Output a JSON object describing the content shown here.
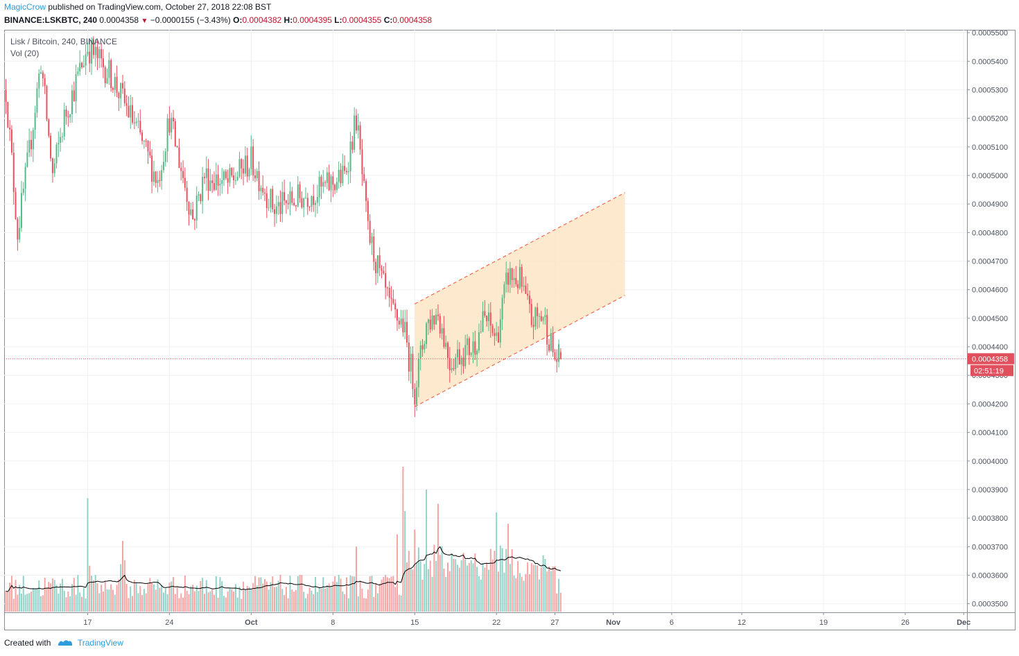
{
  "header": {
    "author": "MagicCrow",
    "published": "published on TradingView.com, October 27, 2018 22:08 BST",
    "symbol": "BINANCE:LSKBTC, 240",
    "last": "0.0004358",
    "change": "−0.0000155 (−3.43%)",
    "o_label": "O:",
    "o_value": "0.0004382",
    "h_label": "H:",
    "h_value": "0.0004395",
    "l_label": "L:",
    "l_value": "0.0004355",
    "c_label": "C:",
    "c_value": "0.0004358"
  },
  "legend": {
    "title": "Lisk / Bitcoin, 240, BINANCE",
    "volume": "Vol (20)"
  },
  "footer": {
    "created": "Created with",
    "brand": "TradingView"
  },
  "chart_data": {
    "type": "candlestick",
    "price_axis": {
      "ticks": [
        "0.0005500",
        "0.0005400",
        "0.0005300",
        "0.0005200",
        "0.0005100",
        "0.0005000",
        "0.0004900",
        "0.0004800",
        "0.0004700",
        "0.0004600",
        "0.0004500",
        "0.0004400",
        "0.0004300",
        "0.0004200",
        "0.0004100",
        "0.0004000",
        "0.0003900",
        "0.0003800",
        "0.0003700",
        "0.0003600",
        "0.0003500"
      ],
      "range": [
        0.000347,
        0.000551
      ]
    },
    "time_axis": {
      "labels": [
        "17",
        "24",
        "Oct",
        "8",
        "15",
        "22",
        "27",
        "Nov",
        "6",
        "12",
        "19",
        "26",
        "Dec"
      ],
      "label_dates": [
        "2018-09-17",
        "2018-09-24",
        "2018-10-01",
        "2018-10-08",
        "2018-10-15",
        "2018-10-22",
        "2018-10-27",
        "2018-11-01",
        "2018-11-06",
        "2018-11-12",
        "2018-11-19",
        "2018-11-26",
        "2018-12-01"
      ]
    },
    "last_price": {
      "value": 0.0004358,
      "label": "0.0004358",
      "countdown": "02:51:19",
      "color": "#e0505d"
    },
    "channel": {
      "start_date": "2018-10-15",
      "end_date": "2018-11-02",
      "upper": [
        0.000455,
        0.000494
      ],
      "lower": [
        0.000419,
        0.000458
      ],
      "fill": "#fde5c5",
      "line_color": "#f26b4f"
    },
    "colors": {
      "up": "#53b987",
      "down": "#eb4d5c",
      "vol_up": "#8fd2c8",
      "vol_down": "#f5a3a3",
      "ma": "#000000"
    },
    "anchors": {
      "dates": [
        "2018-09-10",
        "2018-09-11",
        "2018-09-12",
        "2018-09-13",
        "2018-09-14",
        "2018-09-15",
        "2018-09-17",
        "2018-09-19",
        "2018-09-21",
        "2018-09-23",
        "2018-09-24",
        "2018-09-26",
        "2018-09-27",
        "2018-09-29",
        "2018-10-01",
        "2018-10-03",
        "2018-10-04",
        "2018-10-05",
        "2018-10-07",
        "2018-10-09",
        "2018-10-10",
        "2018-10-11",
        "2018-10-12",
        "2018-10-13",
        "2018-10-14",
        "2018-10-15",
        "2018-10-16",
        "2018-10-17",
        "2018-10-18",
        "2018-10-19",
        "2018-10-20",
        "2018-10-21",
        "2018-10-22",
        "2018-10-23",
        "2018-10-24",
        "2018-10-25",
        "2018-10-26",
        "2018-10-27"
      ],
      "closes": [
        0.00053,
        0.00048,
        0.000508,
        0.00054,
        0.0005,
        0.00052,
        0.000545,
        0.000535,
        0.000518,
        0.000498,
        0.00052,
        0.000485,
        0.0005,
        0.000497,
        0.000505,
        0.000488,
        0.00049,
        0.000492,
        0.000495,
        0.0005,
        0.00052,
        0.00048,
        0.000465,
        0.000452,
        0.000448,
        0.000425,
        0.000448,
        0.000452,
        0.000435,
        0.000438,
        0.00044,
        0.00045,
        0.000443,
        0.000465,
        0.000463,
        0.000449,
        0.000451,
        0.0004358
      ]
    },
    "volume": {
      "dates": [
        "2018-09-17",
        "2018-09-20",
        "2018-10-10",
        "2018-10-14",
        "2018-10-15",
        "2018-10-16",
        "2018-10-17",
        "2018-10-22",
        "2018-10-23"
      ],
      "spikes": [
        0.000387,
        0.000372,
        0.00037,
        0.000398,
        0.000376,
        0.00039,
        0.000385,
        0.000382,
        0.000378
      ],
      "ma_window": 20
    }
  }
}
